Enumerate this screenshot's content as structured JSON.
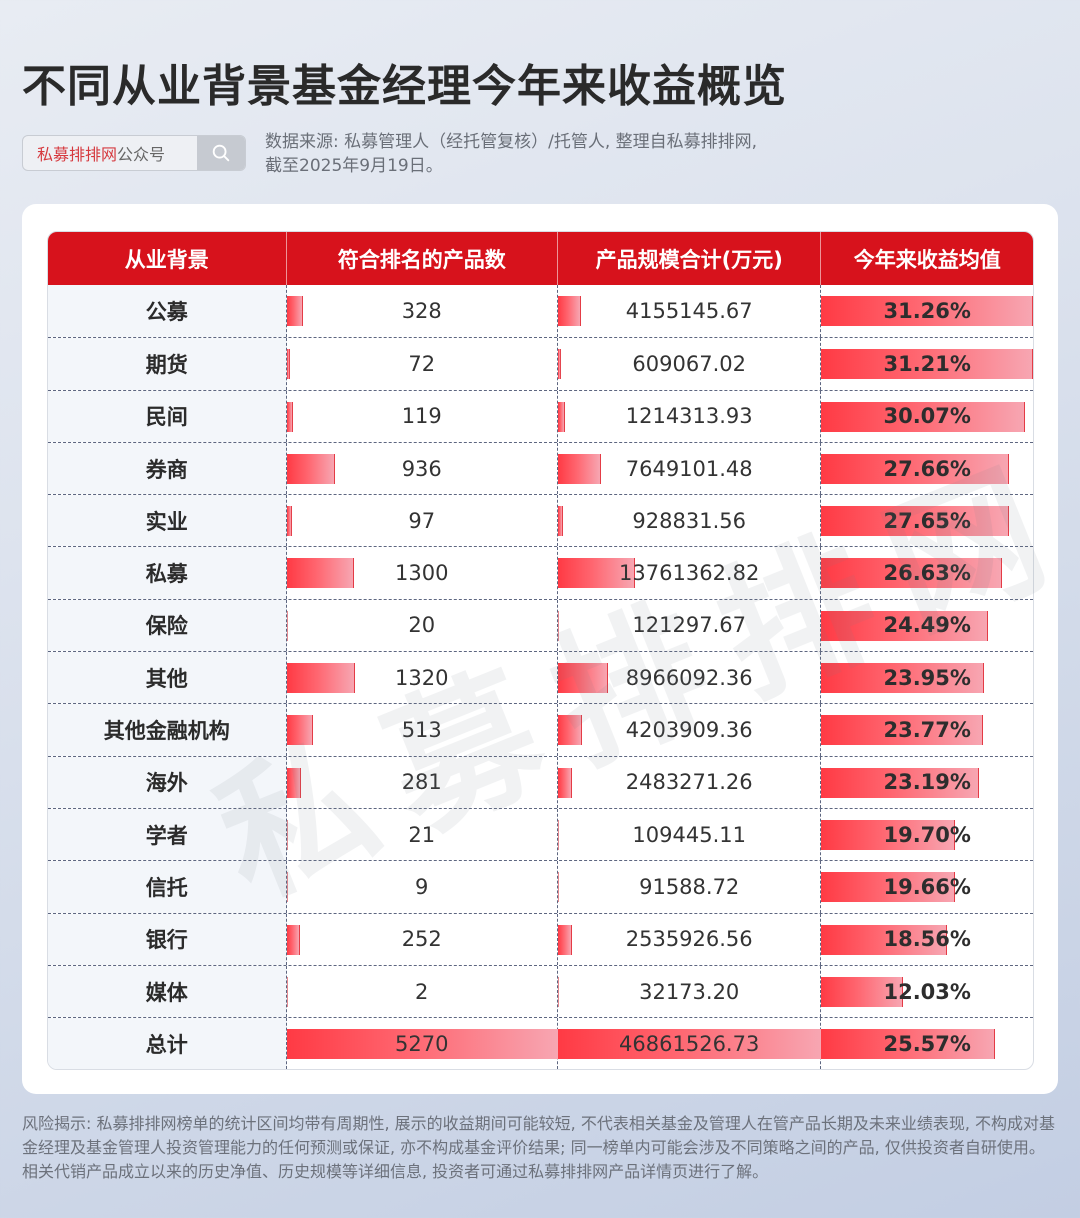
{
  "header": {
    "title": "不同从业背景基金经理今年来收益概览",
    "search_brand": "私募排排网",
    "search_suffix": "公众号",
    "search_icon": "search-icon",
    "source_line1": "数据来源: 私募管理人（经托管复核）/托管人, 整理自私募排排网,",
    "source_line2": "截至2025年9月19日。"
  },
  "table": {
    "columns": [
      "从业背景",
      "符合排名的产品数",
      "产品规模合计(万元)",
      "今年来收益均值"
    ],
    "rows": [
      {
        "background": "公募",
        "count": "328",
        "scale": "4155145.67",
        "return": "31.26%"
      },
      {
        "background": "期货",
        "count": "72",
        "scale": "609067.02",
        "return": "31.21%"
      },
      {
        "background": "民间",
        "count": "119",
        "scale": "1214313.93",
        "return": "30.07%"
      },
      {
        "background": "券商",
        "count": "936",
        "scale": "7649101.48",
        "return": "27.66%"
      },
      {
        "background": "实业",
        "count": "97",
        "scale": "928831.56",
        "return": "27.65%"
      },
      {
        "background": "私募",
        "count": "1300",
        "scale": "13761362.82",
        "return": "26.63%"
      },
      {
        "background": "保险",
        "count": "20",
        "scale": "121297.67",
        "return": "24.49%"
      },
      {
        "background": "其他",
        "count": "1320",
        "scale": "8966092.36",
        "return": "23.95%"
      },
      {
        "background": "其他金融机构",
        "count": "513",
        "scale": "4203909.36",
        "return": "23.77%"
      },
      {
        "background": "海外",
        "count": "281",
        "scale": "2483271.26",
        "return": "23.19%"
      },
      {
        "background": "学者",
        "count": "21",
        "scale": "109445.11",
        "return": "19.70%"
      },
      {
        "background": "信托",
        "count": "9",
        "scale": "91588.72",
        "return": "19.66%"
      },
      {
        "background": "银行",
        "count": "252",
        "scale": "2535926.56",
        "return": "18.56%"
      },
      {
        "background": "媒体",
        "count": "2",
        "scale": "32173.20",
        "return": "12.03%"
      },
      {
        "background": "总计",
        "count": "5270",
        "scale": "46861526.73",
        "return": "25.57%"
      }
    ]
  },
  "watermark": "私募排排网",
  "disclaimer": "风险揭示: 私募排排网榜单的统计区间均带有周期性, 展示的收益期间可能较短, 不代表相关基金及管理人在管产品长期及未来业绩表现, 不构成对基金经理及基金管理人投资管理能力的任何预测或保证, 亦不构成基金评价结果; 同一榜单内可能会涉及不同策略之间的产品, 仅供投资者自研使用。相关代销产品成立以来的历史净值、历史规模等详细信息, 投资者可通过私募排排网产品详情页进行了解。",
  "colors": {
    "header_red": "#d7121c",
    "bar_start": "#ff3a44",
    "bar_end": "#f7a6b2"
  },
  "chart_data": {
    "type": "table",
    "title": "不同从业背景基金经理今年来收益概览",
    "columns": [
      "从业背景",
      "符合排名的产品数",
      "产品规模合计(万元)",
      "今年来收益均值"
    ],
    "categories": [
      "公募",
      "期货",
      "民间",
      "券商",
      "实业",
      "私募",
      "保险",
      "其他",
      "其他金融机构",
      "海外",
      "学者",
      "信托",
      "银行",
      "媒体",
      "总计"
    ],
    "series": [
      {
        "name": "符合排名的产品数",
        "values": [
          328,
          72,
          119,
          936,
          97,
          1300,
          20,
          1320,
          513,
          281,
          21,
          9,
          252,
          2,
          5270
        ]
      },
      {
        "name": "产品规模合计(万元)",
        "values": [
          4155145.67,
          609067.02,
          1214313.93,
          7649101.48,
          928831.56,
          13761362.82,
          121297.67,
          8966092.36,
          4203909.36,
          2483271.26,
          109445.11,
          91588.72,
          2535926.56,
          32173.2,
          46861526.73
        ]
      },
      {
        "name": "今年来收益均值(%)",
        "values": [
          31.26,
          31.21,
          30.07,
          27.66,
          27.65,
          26.63,
          24.49,
          23.95,
          23.77,
          23.19,
          19.7,
          19.66,
          18.56,
          12.03,
          25.57
        ]
      }
    ],
    "notes": "Data bars in each numeric column; count and scale bars scaled to the 总计 row, return bars scaled to max 31.26%. Source: 私募管理人（经托管复核）/托管人, 整理自私募排排网, 截至2025年9月19日。"
  }
}
